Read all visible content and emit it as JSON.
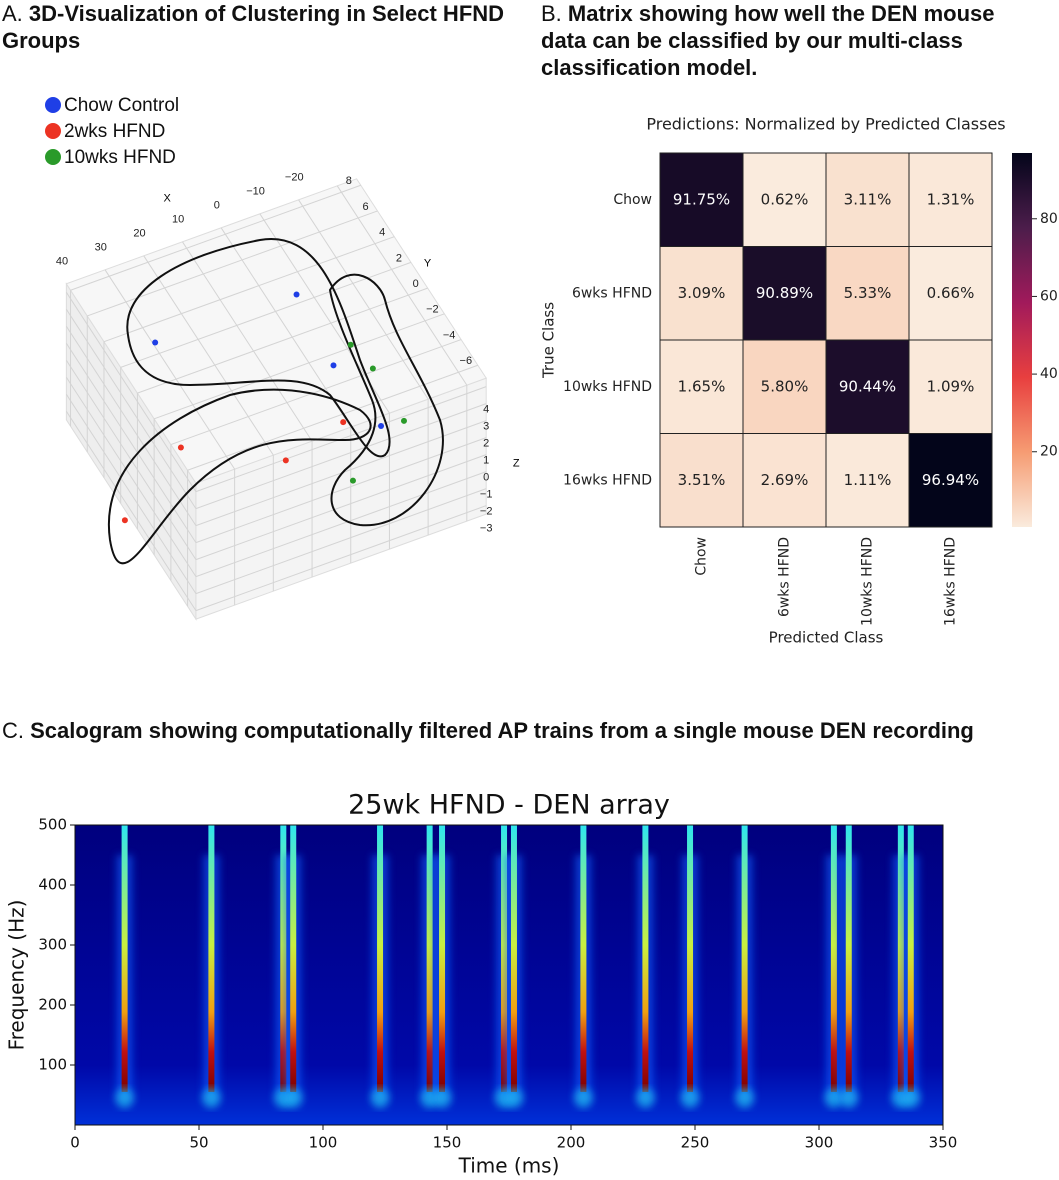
{
  "chart_data": [
    {
      "type": "scatter3d",
      "panel": "A.",
      "title": "3D-Visualization of Clustering in Select HFND Groups",
      "xlabel": "X",
      "ylabel": "Y",
      "zlabel": "Z",
      "xlim": [
        -25,
        50
      ],
      "ylim": [
        -7,
        8.5
      ],
      "zlim": [
        -3.5,
        4.5
      ],
      "xticks": [
        40,
        30,
        20,
        10,
        0,
        {
          "value": -10,
          "label": "−10"
        },
        {
          "value": -20,
          "label": "−20"
        }
      ],
      "yticks": [
        8,
        6,
        4,
        2,
        0,
        {
          "value": -2,
          "label": "−2"
        },
        {
          "value": -4,
          "label": "−4"
        },
        {
          "value": -6,
          "label": "−6"
        }
      ],
      "zticks": [
        4,
        3,
        2,
        1,
        0,
        {
          "value": -1,
          "label": "−1"
        },
        {
          "value": -2,
          "label": "−2"
        },
        {
          "value": -3,
          "label": "−3"
        }
      ],
      "series": [
        {
          "name": "Chow Control",
          "color": "#1f3fe6",
          "x": [
            29,
            -7.1,
            -5.2,
            -6.9
          ],
          "y": [
            7.6,
            7.4,
            2.1,
            -2.8
          ],
          "z": [
            0,
            0,
            0,
            0
          ]
        },
        {
          "name": "2wks HFND",
          "color": "#ec3323",
          "x": [
            37.9,
            17.7,
            0.5,
            59.5
          ],
          "y": [
            0.4,
            -2.8,
            -1.7,
            -2.9
          ],
          "z": [
            0,
            0,
            0,
            0
          ]
        },
        {
          "name": "10wks HFND",
          "color": "#2a9a2a",
          "x": [
            -11.6,
            -13,
            -12.4,
            6.4
          ],
          "y": [
            3,
            1,
            -3,
            -5.6
          ],
          "z": [
            0,
            0,
            0,
            0
          ]
        }
      ]
    },
    {
      "type": "heatmap",
      "panel": "B.",
      "title": "Matrix showing how well the DEN mouse data can be classified by our multi-class classification model.",
      "subtitle": "Predictions: Normalized by Predicted Classes",
      "xlabel": "Predicted Class",
      "ylabel": "True Class",
      "categories": [
        "Chow",
        "6wks HFND",
        "10wks HFND",
        "16wks HFND"
      ],
      "values": [
        [
          91.75,
          0.62,
          3.11,
          1.31
        ],
        [
          3.09,
          90.89,
          5.33,
          0.66
        ],
        [
          1.65,
          5.8,
          90.44,
          1.09
        ],
        [
          3.51,
          2.69,
          1.11,
          96.94
        ]
      ],
      "value_labels": [
        [
          "91.75%",
          "0.62%",
          "3.11%",
          "1.31%"
        ],
        [
          "3.09%",
          "90.89%",
          "5.33%",
          "0.66%"
        ],
        [
          "1.65%",
          "5.80%",
          "90.44%",
          "1.09%"
        ],
        [
          "3.51%",
          "2.69%",
          "1.11%",
          "96.94%"
        ]
      ],
      "clim": [
        0.62,
        96.94
      ],
      "cticks": [
        20,
        40,
        60,
        80
      ],
      "colormap": "rocket_r"
    },
    {
      "type": "scalogram",
      "panel": "C.",
      "title": "Scalogram showing computationally filtered AP trains from a single mouse DEN recording",
      "plot_title": "25wk HFND - DEN array",
      "xlabel": "Time (ms)",
      "ylabel": "Frequency (Hz)",
      "xlim": [
        0,
        350
      ],
      "ylim": [
        0,
        500
      ],
      "xticks": [
        0,
        50,
        100,
        150,
        200,
        250,
        300,
        350
      ],
      "yticks": [
        100,
        200,
        300,
        400,
        500
      ],
      "x": [
        20,
        55,
        84,
        88,
        123,
        143,
        148,
        173,
        177,
        205,
        230,
        248,
        270,
        306,
        312,
        333,
        337
      ]
    }
  ]
}
